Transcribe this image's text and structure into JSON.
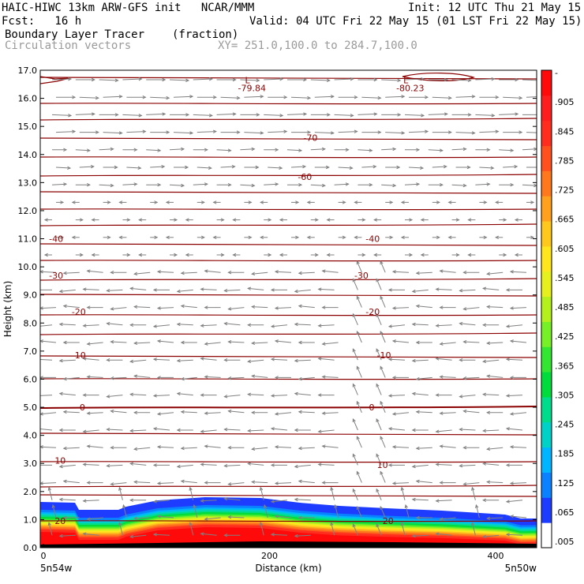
{
  "header": {
    "title_left": "HAIC-HIWC 13km ARW-GFS init   NCAR/MMM",
    "init": "Init: 12 UTC Thu 21 May 15",
    "fcst": "Fcst:   16 h",
    "valid": "Valid: 04 UTC Fri 22 May 15 (01 LST Fri 22 May 15)",
    "field1": "Boundary Layer Tracer",
    "field1_units": "(fraction)",
    "field2": "Circulation vectors",
    "xy_range": "XY= 251.0,100.0 to 284.7,100.0"
  },
  "chart_data": {
    "type": "cross-section",
    "ylabel": "Height (km)",
    "xlabel": "Distance (km)",
    "xlim": [
      0,
      440
    ],
    "ylim": [
      0,
      17
    ],
    "yticks": [
      "0.0",
      "1.0",
      "2.0",
      "3.0",
      "4.0",
      "5.0",
      "6.0",
      "7.0",
      "8.0",
      "9.0",
      "10.0",
      "11.0",
      "12.0",
      "13.0",
      "14.0",
      "15.0",
      "16.0",
      "17.0"
    ],
    "xticks": [
      {
        "value": 0,
        "label": "0"
      },
      {
        "value": 200,
        "label": "200"
      },
      {
        "value": 400,
        "label": "400"
      }
    ],
    "x_end_labels": {
      "left": "5n54w",
      "right": "5n50w"
    },
    "colorbar": {
      "labels": [
        ".005",
        ".065",
        ".125",
        ".185",
        ".245",
        ".305",
        ".365",
        ".425",
        ".485",
        ".545",
        ".605",
        ".665",
        ".725",
        ".785",
        ".845",
        ".905",
        "-"
      ],
      "colors": [
        "#ffffff",
        "#1e3cff",
        "#0a82ff",
        "#00b4ff",
        "#00d2c8",
        "#00dc8c",
        "#00dc3c",
        "#32e632",
        "#78f028",
        "#b4f01e",
        "#e6f01e",
        "#ffe61e",
        "#ffc81e",
        "#ffa01e",
        "#ff781e",
        "#ff501e",
        "#ff2d1e",
        "#ff1e1e",
        "#ff0a0a"
      ]
    },
    "contour_color": "#8b0000",
    "contour_labels": [
      {
        "x": 230,
        "y": 14.6,
        "text": "-70"
      },
      {
        "x": 225,
        "y": 13.2,
        "text": "-60"
      },
      {
        "x": 5,
        "y": 11.0,
        "text": "-40"
      },
      {
        "x": 285,
        "y": 11.0,
        "text": "-40"
      },
      {
        "x": 5,
        "y": 9.7,
        "text": "-30"
      },
      {
        "x": 275,
        "y": 9.7,
        "text": "-30"
      },
      {
        "x": 25,
        "y": 8.4,
        "text": "-20"
      },
      {
        "x": 285,
        "y": 8.4,
        "text": "-20"
      },
      {
        "x": 25,
        "y": 6.85,
        "text": "-10"
      },
      {
        "x": 295,
        "y": 6.85,
        "text": "-10"
      },
      {
        "x": 32,
        "y": 5.0,
        "text": "0"
      },
      {
        "x": 288,
        "y": 5.0,
        "text": "0"
      },
      {
        "x": 10,
        "y": 3.1,
        "text": "10"
      },
      {
        "x": 295,
        "y": 2.95,
        "text": "10"
      },
      {
        "x": 10,
        "y": 0.95,
        "text": "20"
      },
      {
        "x": 300,
        "y": 0.95,
        "text": "20"
      }
    ],
    "low_centers": [
      {
        "x": 170,
        "y": 16.65,
        "mark": "L",
        "value": "-79.84"
      },
      {
        "x": 310,
        "y": 16.65,
        "mark": "L",
        "value": "-80.23"
      }
    ]
  }
}
